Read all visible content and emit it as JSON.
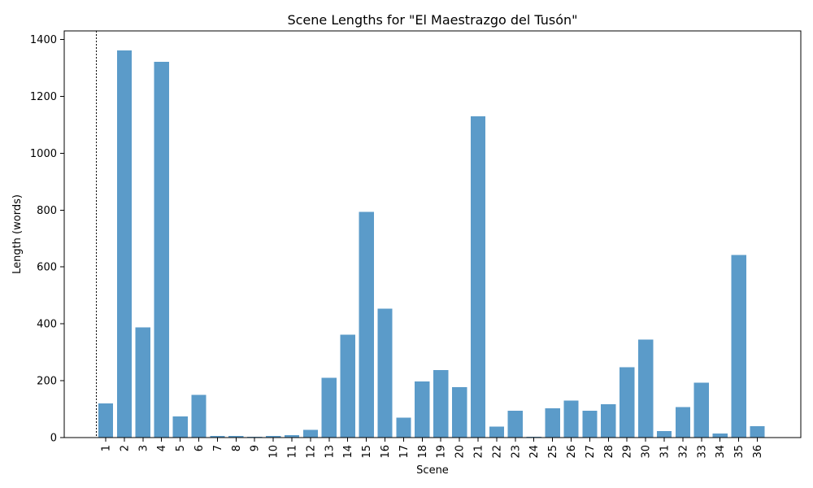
{
  "chart_data": {
    "type": "bar",
    "title": "Scene Lengths for \"El Maestrazgo del Tusón\"",
    "xlabel": "Scene",
    "ylabel": "Length (words)",
    "ylim": [
      0,
      1430
    ],
    "yticks": [
      0,
      200,
      400,
      600,
      800,
      1000,
      1200,
      1400
    ],
    "grid": false,
    "legend": "none",
    "bar_color": "#5b9bc9",
    "categories": [
      "1",
      "2",
      "3",
      "4",
      "5",
      "6",
      "7",
      "8",
      "9",
      "10",
      "11",
      "12",
      "13",
      "14",
      "15",
      "16",
      "17",
      "18",
      "19",
      "20",
      "21",
      "22",
      "23",
      "24",
      "25",
      "26",
      "27",
      "28",
      "29",
      "30",
      "31",
      "32",
      "33",
      "34",
      "35",
      "36"
    ],
    "values": [
      120,
      1362,
      387,
      1322,
      75,
      150,
      6,
      6,
      3,
      6,
      9,
      27,
      210,
      362,
      793,
      453,
      70,
      198,
      238,
      178,
      1130,
      38,
      95,
      3,
      103,
      130,
      95,
      117,
      247,
      345,
      23,
      107,
      193,
      15,
      642,
      40
    ],
    "marker_line": {
      "position": "before first bar",
      "style": "dotted"
    }
  }
}
